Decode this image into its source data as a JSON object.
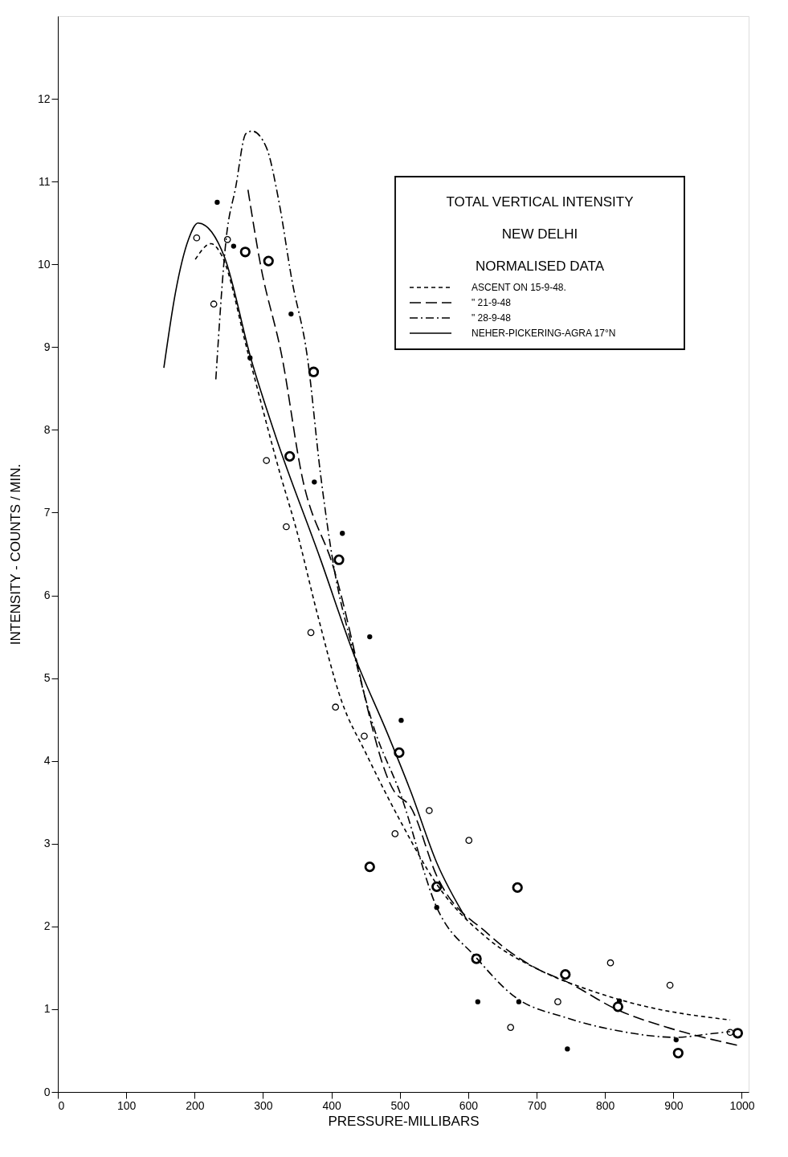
{
  "chart_data": {
    "type": "scatter",
    "xlabel": "PRESSURE-MILLIBARS",
    "ylabel": "INTENSITY  -  COUNTS / MIN.",
    "legend_title": "TOTAL VERTICAL INTENSITY\nNEW DELHI\nNORMALISED DATA",
    "legend": "top right",
    "grid": false,
    "marker": "circle",
    "xlim": [
      0,
      1010
    ],
    "ylim": [
      0,
      13
    ],
    "xticks": [
      0,
      100,
      200,
      300,
      400,
      500,
      600,
      700,
      800,
      900,
      1000
    ],
    "yticks": [
      0,
      1,
      2,
      3,
      4,
      5,
      6,
      7,
      8,
      9,
      10,
      11,
      12
    ],
    "series": [
      {
        "name": "ASCENT ON 15-9-48.",
        "type": "scatter",
        "color": "#000000",
        "x": [
          203,
          248,
          228,
          305,
          334,
          370,
          406,
          448,
          543,
          493,
          601,
          808,
          895,
          731,
          662,
          983
        ],
        "values": [
          10.32,
          10.3,
          9.52,
          7.63,
          6.83,
          5.55,
          4.65,
          4.3,
          3.4,
          3.12,
          3.04,
          1.56,
          1.29,
          1.09,
          0.78,
          0.72
        ]
      },
      {
        "name": "\" 21-9-48",
        "type": "scatter",
        "color": "#000000",
        "x": [
          274,
          308,
          339,
          374,
          411,
          499,
          456,
          554,
          672,
          612,
          742,
          819,
          994,
          907
        ],
        "values": [
          10.15,
          10.04,
          7.68,
          8.7,
          6.43,
          4.1,
          2.72,
          2.48,
          2.47,
          1.61,
          1.42,
          1.03,
          0.71,
          0.47
        ]
      },
      {
        "name": "\" 28-9-48",
        "type": "scatter",
        "color": "#000000",
        "x": [
          233,
          257,
          281,
          341,
          375,
          416,
          456,
          502,
          554,
          614,
          674,
          821,
          904,
          745
        ],
        "values": [
          10.75,
          10.22,
          8.87,
          9.4,
          7.37,
          6.75,
          5.5,
          4.49,
          2.23,
          1.09,
          1.09,
          1.1,
          0.63,
          0.52
        ]
      },
      {
        "type": "line",
        "marker": "none",
        "line_style": "dashed",
        "color": "#000000",
        "x": [
          201,
          224,
          240,
          278,
          326,
          348,
          379,
          415,
          450,
          501,
          554,
          629,
          705,
          781,
          856,
          983
        ],
        "values": [
          10.06,
          10.25,
          10.1,
          8.93,
          7.44,
          6.82,
          5.79,
          4.72,
          4.1,
          3.27,
          2.51,
          1.85,
          1.47,
          1.22,
          1.04,
          0.87
        ]
      },
      {
        "type": "line",
        "marker": "none",
        "line_style": "dashed",
        "color": "#000000",
        "x": [
          278,
          296,
          328,
          357,
          401,
          492,
          516,
          554,
          629,
          705,
          742,
          819,
          895,
          996
        ],
        "values": [
          10.9,
          10.01,
          8.87,
          7.44,
          6.39,
          3.63,
          3.44,
          2.61,
          1.91,
          1.47,
          1.34,
          0.99,
          0.77,
          0.56
        ]
      },
      {
        "type": "line",
        "marker": "none",
        "line_style": "dashed",
        "color": "#000000",
        "x": [
          231,
          246,
          260,
          275,
          284,
          305,
          323,
          342,
          365,
          384,
          402,
          434,
          461,
          501,
          554,
          611,
          668,
          742,
          819,
          904,
          951,
          983
        ],
        "values": [
          8.61,
          10.3,
          10.93,
          11.58,
          11.61,
          11.41,
          10.77,
          9.82,
          8.87,
          7.47,
          6.42,
          5.26,
          4.43,
          3.6,
          2.23,
          1.63,
          1.15,
          0.9,
          0.74,
          0.66,
          0.7,
          0.73
        ]
      },
      {
        "name": "NEHER-PICKERING-AGRA 17°N",
        "type": "line",
        "marker": "none",
        "line_style": "solid",
        "color": "#000000",
        "x": [
          155,
          172,
          191,
          205,
          225,
          244,
          282,
          319,
          383,
          434,
          482,
          516,
          554,
          598
        ],
        "values": [
          8.75,
          9.66,
          10.3,
          10.5,
          10.39,
          10.08,
          8.87,
          7.91,
          6.46,
          5.26,
          4.33,
          3.63,
          2.77,
          2.08
        ]
      }
    ]
  }
}
